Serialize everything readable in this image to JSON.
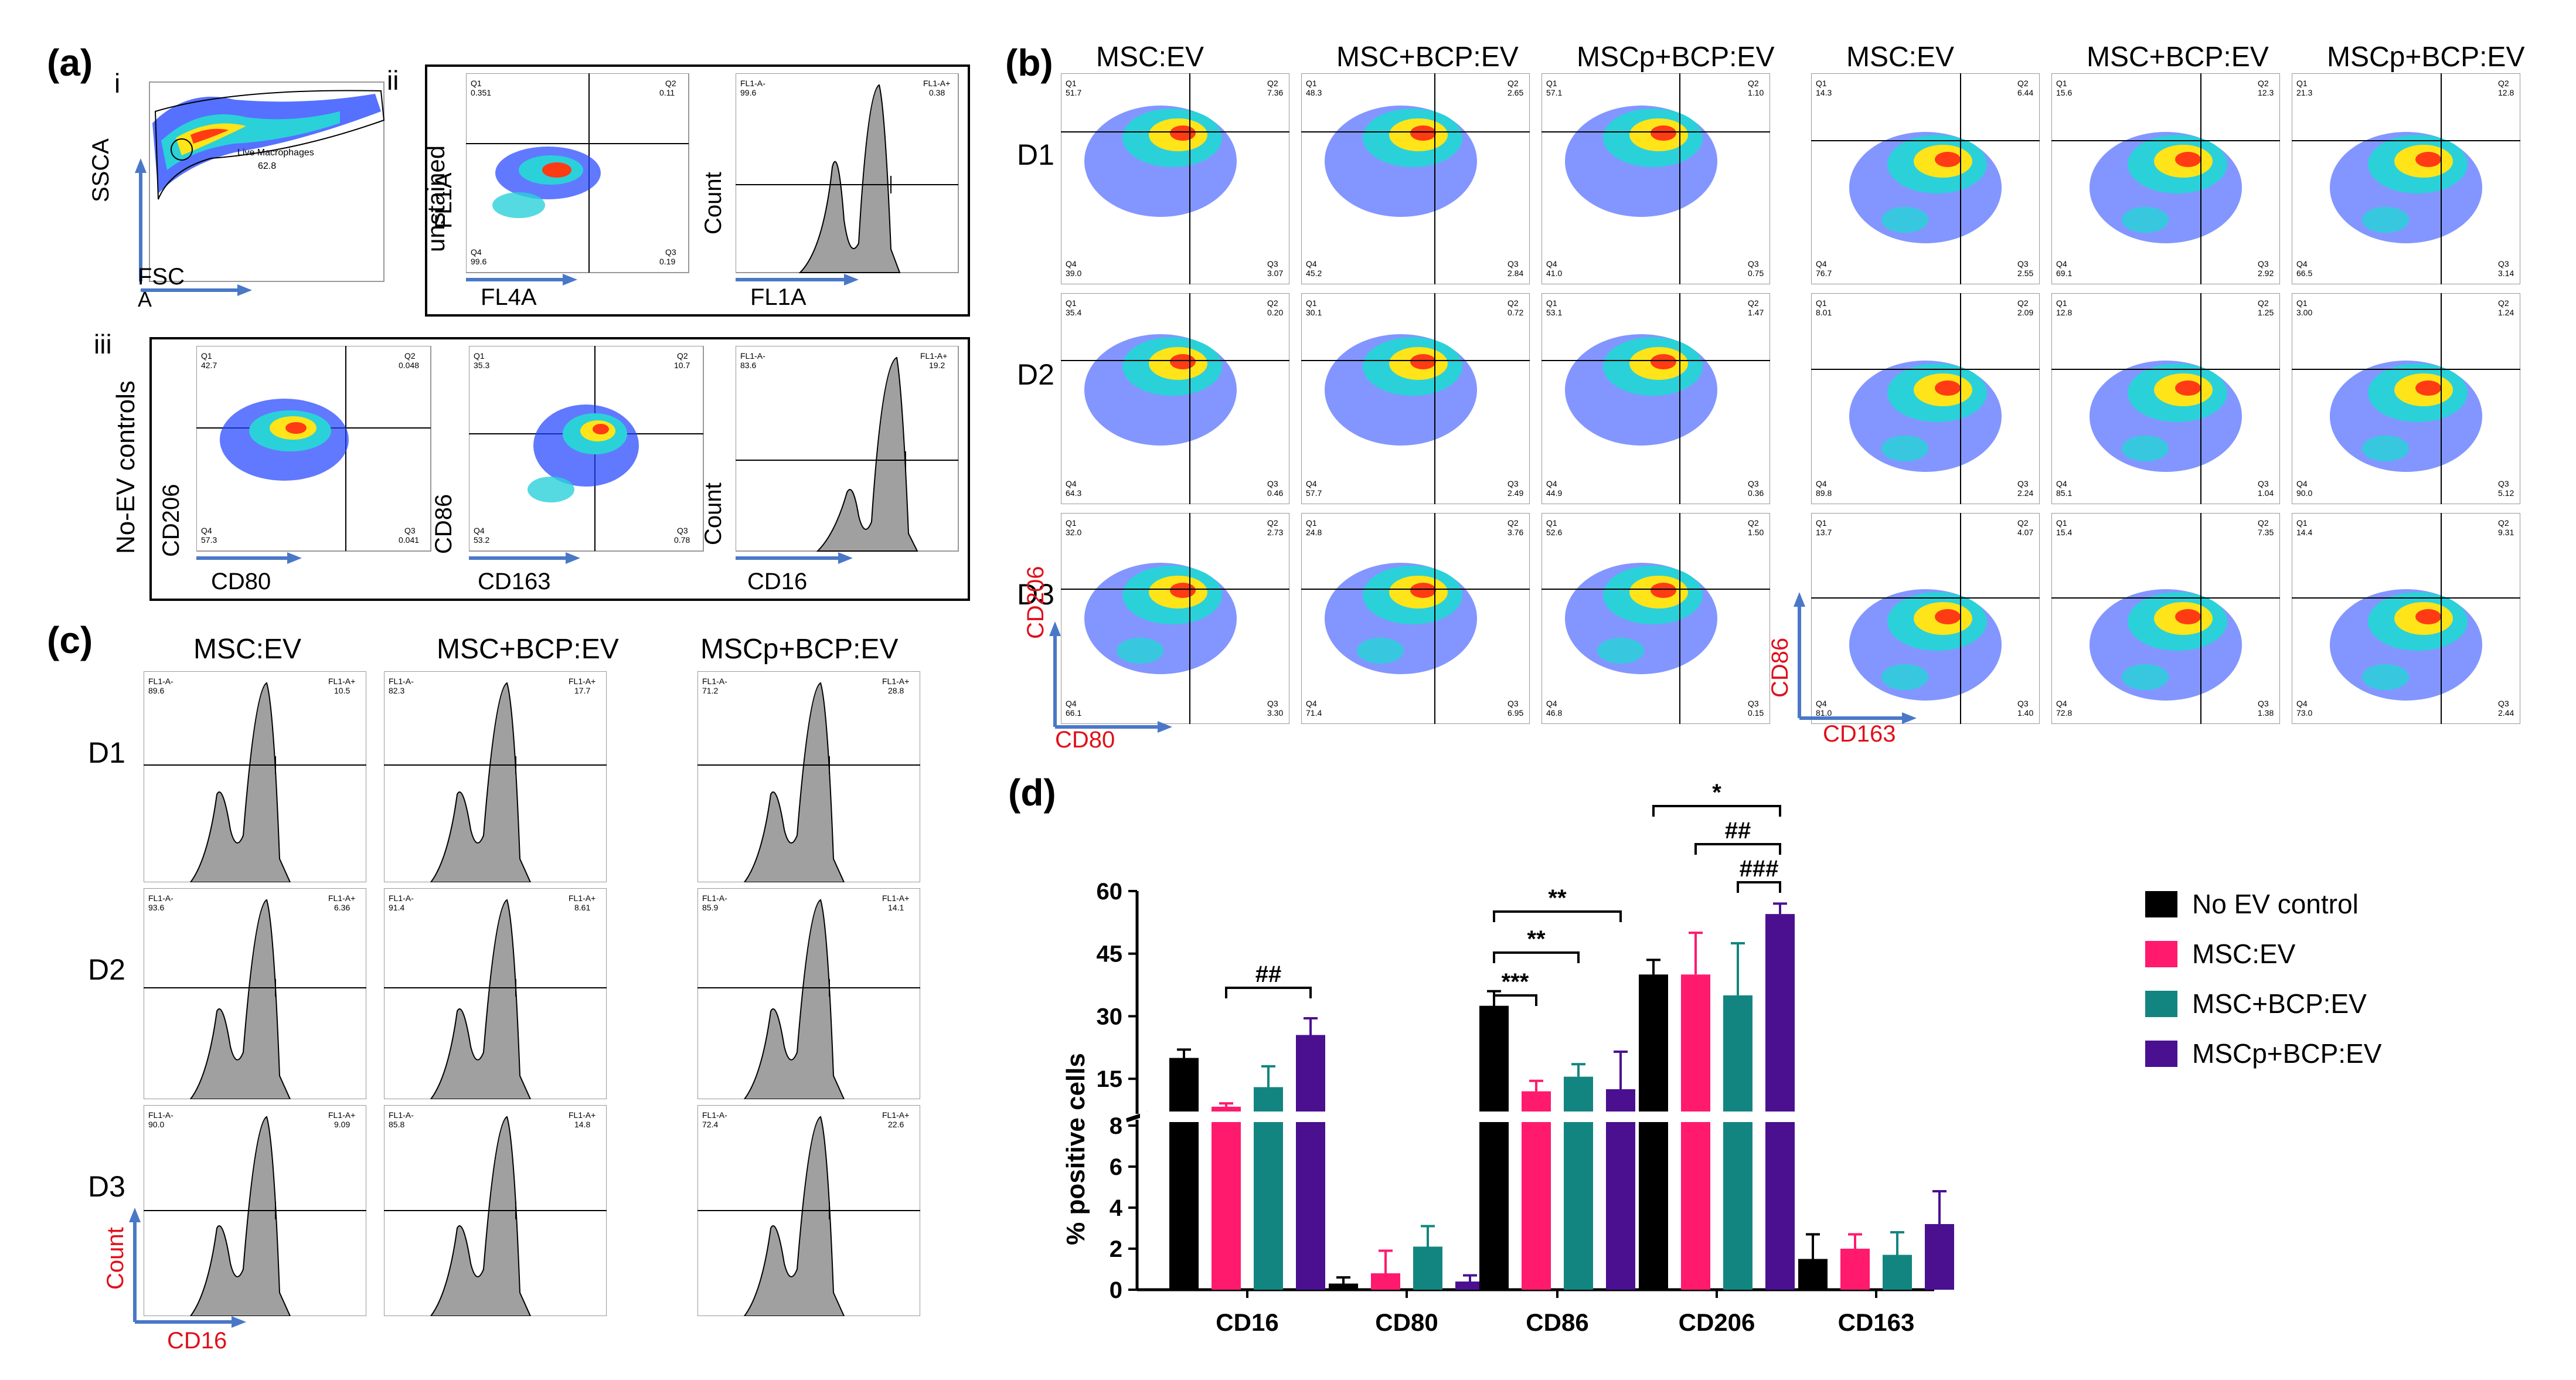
{
  "panel_a": {
    "label": "(a)",
    "sub_i": "i",
    "sub_ii": "ii",
    "sub_iii": "iii",
    "gate_label": "Live Macrophages",
    "gate_value": "62.8",
    "ssca_label": "SSCA",
    "fsc_label": "FSC",
    "fsc_suffix": "A",
    "unstained_label": "unstained",
    "fl1a_label": "FL1A",
    "fl4a_label": "FL4A",
    "count_label": "Count",
    "fl1a_x_label": "FL1A",
    "unstained_quads": {
      "q1": "0.351",
      "q2": "0.11",
      "q3": "0.19",
      "q4": "99.6"
    },
    "unstained_hist": {
      "left": "99.6",
      "right": "0.38",
      "left_title": "FL1-A-",
      "right_title": "FL1-A+"
    },
    "no_ev_label": "No-EV controls",
    "cd206_label": "CD206",
    "cd80_label": "CD80",
    "cd86_label": "CD86",
    "cd163_label": "CD163",
    "cd16_label": "CD16",
    "count2_label": "Count",
    "noev_cd206_quads": {
      "q1": "42.7",
      "q2": "0.048",
      "q3": "0.041",
      "q4": "57.3"
    },
    "noev_cd86_quads": {
      "q1": "35.3",
      "q2": "10.7",
      "q3": "0.78",
      "q4": "53.2"
    },
    "noev_hist": {
      "left": "83.6",
      "right": "19.2",
      "left_title": "FL1-A-",
      "right_title": "FL1-A+"
    }
  },
  "panel_b": {
    "label": "(b)",
    "col_headers": [
      "MSC:EV",
      "MSC+BCP:EV",
      "MSCp+BCP:EV",
      "MSC:EV",
      "MSC+BCP:EV",
      "MSCp+BCP:EV"
    ],
    "row_headers": [
      "D1",
      "D2",
      "D3"
    ],
    "x_label_left": "CD80",
    "y_label_left": "CD206",
    "x_label_right": "CD163",
    "y_label_right": "CD86",
    "quads_left": [
      [
        {
          "q1": "51.7",
          "q2": "7.36",
          "q3": "3.07",
          "q4": "39.0"
        },
        {
          "q1": "48.3",
          "q2": "2.65",
          "q3": "2.84",
          "q4": "45.2"
        },
        {
          "q1": "57.1",
          "q2": "1.10",
          "q3": "0.75",
          "q4": "41.0"
        }
      ],
      [
        {
          "q1": "35.4",
          "q2": "0.20",
          "q3": "0.46",
          "q4": "64.3"
        },
        {
          "q1": "30.1",
          "q2": "0.72",
          "q3": "2.49",
          "q4": "57.7"
        },
        {
          "q1": "53.1",
          "q2": "1.47",
          "q3": "0.36",
          "q4": "44.9"
        }
      ],
      [
        {
          "q1": "32.0",
          "q2": "2.73",
          "q3": "3.30",
          "q4": "66.1"
        },
        {
          "q1": "24.8",
          "q2": "3.76",
          "q3": "6.95",
          "q4": "71.4"
        },
        {
          "q1": "52.6",
          "q2": "1.50",
          "q3": "0.15",
          "q4": "46.8"
        }
      ]
    ],
    "quads_right": [
      [
        {
          "q1": "14.3",
          "q2": "6.44",
          "q3": "2.55",
          "q4": "76.7"
        },
        {
          "q1": "15.6",
          "q2": "12.3",
          "q3": "2.92",
          "q4": "69.1"
        },
        {
          "q1": "21.3",
          "q2": "12.8",
          "q3": "3.14",
          "q4": "66.5"
        }
      ],
      [
        {
          "q1": "8.01",
          "q2": "2.09",
          "q3": "2.24",
          "q4": "89.8"
        },
        {
          "q1": "12.8",
          "q2": "1.25",
          "q3": "1.04",
          "q4": "85.1"
        },
        {
          "q1": "3.00",
          "q2": "1.24",
          "q3": "5.12",
          "q4": "90.0"
        }
      ],
      [
        {
          "q1": "13.7",
          "q2": "4.07",
          "q3": "1.40",
          "q4": "81.0"
        },
        {
          "q1": "15.4",
          "q2": "7.35",
          "q3": "1.38",
          "q4": "72.8"
        },
        {
          "q1": "14.4",
          "q2": "9.31",
          "q3": "2.44",
          "q4": "73.0"
        }
      ]
    ]
  },
  "panel_c": {
    "label": "(c)",
    "col_headers": [
      "MSC:EV",
      "MSC+BCP:EV",
      "MSCp+BCP:EV"
    ],
    "row_headers": [
      "D1",
      "D2",
      "D3"
    ],
    "x_label": "CD16",
    "y_label": "Count",
    "gate_left_title": "FL1-A-",
    "gate_right_title": "FL1-A+",
    "hist_values": [
      [
        {
          "l": "89.6",
          "r": "10.5"
        },
        {
          "l": "82.3",
          "r": "17.7"
        },
        {
          "l": "71.2",
          "r": "28.8"
        }
      ],
      [
        {
          "l": "93.6",
          "r": "6.36"
        },
        {
          "l": "91.4",
          "r": "8.61"
        },
        {
          "l": "85.9",
          "r": "14.1"
        }
      ],
      [
        {
          "l": "90.0",
          "r": "9.09"
        },
        {
          "l": "85.8",
          "r": "14.8"
        },
        {
          "l": "72.4",
          "r": "22.6"
        }
      ]
    ]
  },
  "panel_d": {
    "label": "(d)",
    "significance": {
      "s1": "##",
      "s2": "**",
      "s3": "**",
      "s4": "***",
      "s5": "*",
      "s6": "##",
      "s7": "###"
    }
  },
  "chart_data": {
    "type": "bar",
    "title": "",
    "xlabel": "",
    "ylabel": "% positive cells",
    "categories": [
      "CD16",
      "CD80",
      "CD86",
      "CD206",
      "CD163"
    ],
    "y_axis_break": {
      "lower_range": [
        0,
        8
      ],
      "upper_range": [
        8,
        60
      ]
    },
    "lower_ticks": [
      "0",
      "2",
      "4",
      "6",
      "8"
    ],
    "upper_ticks": [
      "15",
      "30",
      "45",
      "60"
    ],
    "series": [
      {
        "name": "No EV control",
        "color": "#000000",
        "values": [
          20,
          0.3,
          32.5,
          40,
          1.5
        ],
        "errors": [
          2,
          0.3,
          3.5,
          3.5,
          1.2
        ]
      },
      {
        "name": "MSC:EV",
        "color": "#ff1a6e",
        "values": [
          8.3,
          0.8,
          12,
          40,
          2.0
        ],
        "errors": [
          0.8,
          1.1,
          2.5,
          10,
          0.7
        ]
      },
      {
        "name": "MSC+BCP:EV",
        "color": "#138580",
        "values": [
          13,
          2.1,
          15.5,
          35,
          1.7
        ],
        "errors": [
          5,
          1.0,
          3,
          12.5,
          1.1
        ]
      },
      {
        "name": "MSCp+BCP:EV",
        "color": "#4a1090",
        "values": [
          25.5,
          0.4,
          12.5,
          54.5,
          3.2
        ],
        "errors": [
          4,
          0.3,
          9,
          2.5,
          1.6
        ]
      }
    ]
  }
}
